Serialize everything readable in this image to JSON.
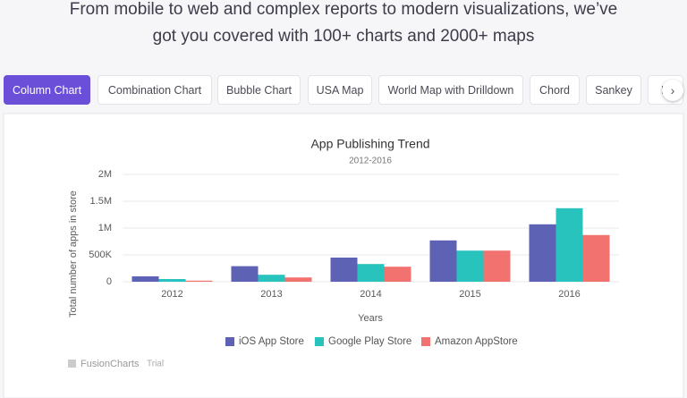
{
  "header": {
    "lines": [
      "From mobile to web and complex reports to modern visualizations, we’ve",
      "got you covered with 100+ charts and 2000+ maps"
    ]
  },
  "tabs": [
    "Column Chart",
    "Combination Chart",
    "Bubble Chart",
    "USA Map",
    "World Map with Drilldown",
    "Chord",
    "Sankey",
    "D"
  ],
  "chart_data": {
    "type": "bar",
    "title": "App Publishing Trend",
    "subtitle": "2012-2016",
    "x_label": "Years",
    "y_label": "Total number of apps in store",
    "categories": [
      "2012",
      "2013",
      "2014",
      "2015",
      "2016"
    ],
    "series": [
      {
        "name": "iOS App Store",
        "color": "#5d62b5",
        "values": [
          100000,
          290000,
          450000,
          770000,
          1070000
        ]
      },
      {
        "name": "Google Play Store",
        "color": "#29c3be",
        "values": [
          50000,
          130000,
          330000,
          580000,
          1370000
        ]
      },
      {
        "name": "Amazon AppStore",
        "color": "#f2726f",
        "values": [
          20000,
          80000,
          280000,
          580000,
          870000
        ]
      }
    ],
    "ylim": [
      0,
      2000000
    ],
    "yticks": [
      0,
      {
        "value": 500000,
        "label": "500K"
      },
      {
        "value": 1000000,
        "label": "1M"
      },
      {
        "value": 1500000,
        "label": "1.5M"
      },
      {
        "value": 2000000,
        "label": "2M"
      }
    ],
    "grid": true,
    "legend": "bottom"
  },
  "branding": {
    "name": "FusionCharts",
    "note": "Trial"
  }
}
